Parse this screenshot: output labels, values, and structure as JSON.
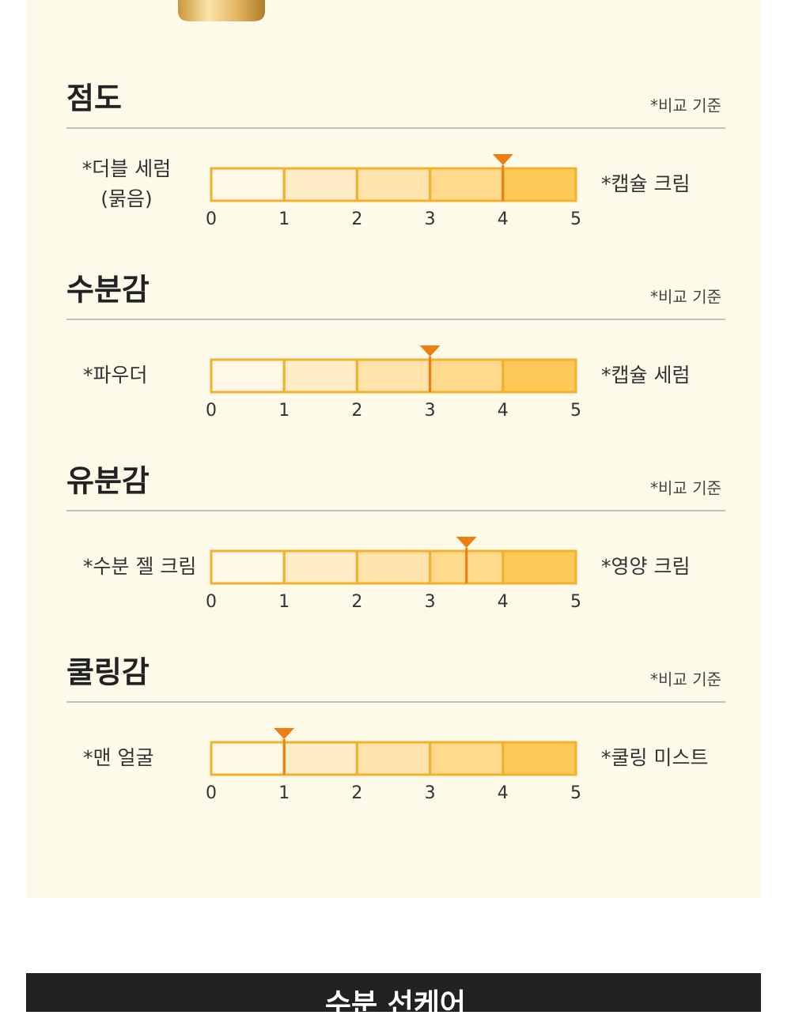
{
  "chart_data": [
    {
      "type": "scale",
      "title": "점도",
      "subtitle": "*비교 기준",
      "left_label": [
        "*더블 세럼",
        "(묽음)"
      ],
      "right_label": [
        "*캡슐 크림"
      ],
      "value": 4,
      "xlim": [
        0,
        5
      ],
      "xticks": [
        0,
        1,
        2,
        3,
        4,
        5
      ]
    },
    {
      "type": "scale",
      "title": "수분감",
      "subtitle": "*비교 기준",
      "left_label": [
        "*파우더"
      ],
      "right_label": [
        "*캡슐 세럼"
      ],
      "value": 3,
      "xlim": [
        0,
        5
      ],
      "xticks": [
        0,
        1,
        2,
        3,
        4,
        5
      ]
    },
    {
      "type": "scale",
      "title": "유분감",
      "subtitle": "*비교 기준",
      "left_label": [
        "*수분 젤 크림"
      ],
      "right_label": [
        "*영양 크림"
      ],
      "value": 3.5,
      "xlim": [
        0,
        5
      ],
      "xticks": [
        0,
        1,
        2,
        3,
        4,
        5
      ]
    },
    {
      "type": "scale",
      "title": "쿨링감",
      "subtitle": "*비교 기준",
      "left_label": [
        "*맨 얼굴"
      ],
      "right_label": [
        "*쿨링 미스트"
      ],
      "value": 1,
      "xlim": [
        0,
        5
      ],
      "xticks": [
        0,
        1,
        2,
        3,
        4,
        5
      ]
    }
  ],
  "banner": {
    "title": "수분 선케어"
  }
}
